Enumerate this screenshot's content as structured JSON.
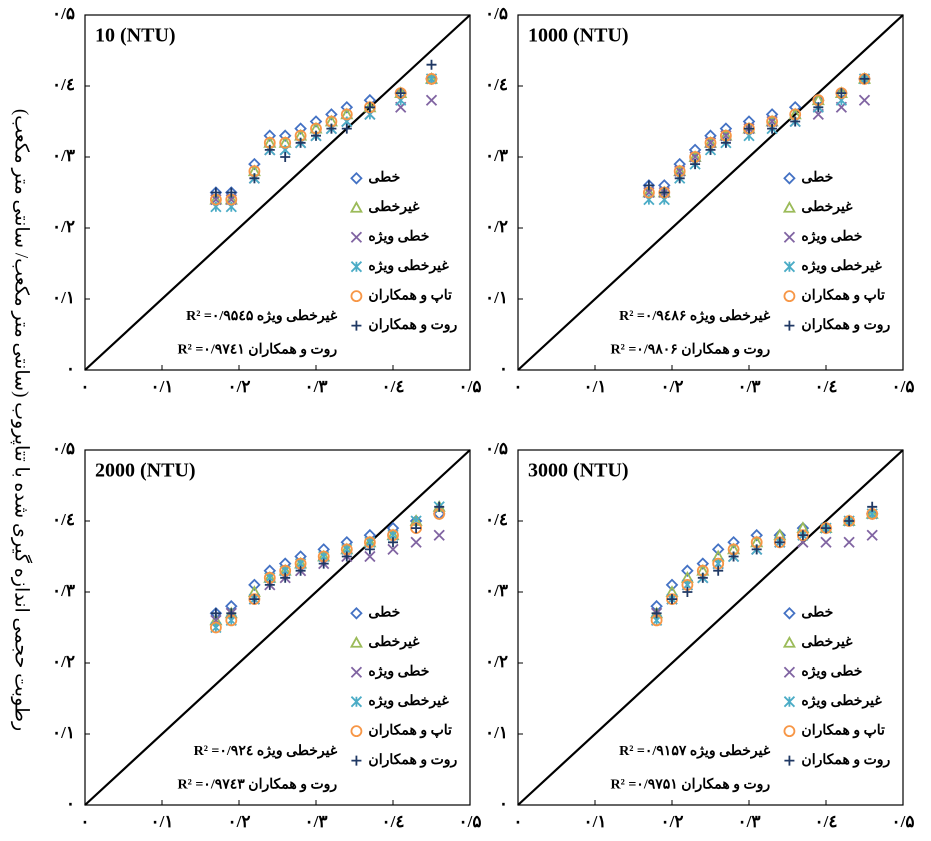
{
  "ylabel": "رطوبت حجمی اندازه گیری شده با تتاپروب (سانتی متر مکعب/ سانتی متر مکعب)",
  "chart_data": [
    {
      "type": "scatter",
      "title": "10 (NTU)",
      "xlim": [
        0,
        0.5
      ],
      "ylim": [
        0,
        0.5
      ],
      "xticks": [
        {
          "value": 0,
          "label": "۰"
        },
        {
          "value": 0.1,
          "label": "۰/۱"
        },
        {
          "value": 0.2,
          "label": "۰/۲"
        },
        {
          "value": 0.3,
          "label": "۰/۳"
        },
        {
          "value": 0.4,
          "label": "۰/٤"
        },
        {
          "value": 0.5,
          "label": "۰/۵"
        }
      ],
      "yticks": [
        {
          "value": 0,
          "label": "۰"
        },
        {
          "value": 0.1,
          "label": "۰/۱"
        },
        {
          "value": 0.2,
          "label": "۰/۲"
        },
        {
          "value": 0.3,
          "label": "۰/۳"
        },
        {
          "value": 0.4,
          "label": "۰/٤"
        },
        {
          "value": 0.5,
          "label": "۰/۵"
        }
      ],
      "annotations": [
        "غیرخطی ویژه R² =۰/۹۵٤۵",
        "روت و همکاران R² =۰/۹۷٤۱"
      ],
      "x": [
        0.17,
        0.19,
        0.22,
        0.24,
        0.26,
        0.28,
        0.3,
        0.32,
        0.34,
        0.37,
        0.41,
        0.45
      ],
      "series": [
        {
          "name": "خطی",
          "color": "#4472c4",
          "marker": "diamond",
          "values": [
            0.25,
            0.25,
            0.29,
            0.33,
            0.33,
            0.34,
            0.35,
            0.36,
            0.37,
            0.38,
            0.39,
            0.41
          ]
        },
        {
          "name": "غیرخطی",
          "color": "#9bbb59",
          "marker": "triangle",
          "values": [
            0.24,
            0.24,
            0.28,
            0.32,
            0.32,
            0.33,
            0.34,
            0.35,
            0.36,
            0.37,
            0.39,
            0.41
          ]
        },
        {
          "name": "خطی ویژه",
          "color": "#8064a2",
          "marker": "x",
          "values": [
            0.24,
            0.24,
            0.27,
            0.31,
            0.31,
            0.32,
            0.33,
            0.34,
            0.35,
            0.36,
            0.37,
            0.38
          ]
        },
        {
          "name": "غیرخطی ویژه",
          "color": "#4bacc6",
          "marker": "asterisk",
          "values": [
            0.23,
            0.23,
            0.27,
            0.31,
            0.31,
            0.32,
            0.33,
            0.34,
            0.35,
            0.36,
            0.38,
            0.41
          ]
        },
        {
          "name": "تاپ و همکاران",
          "color": "#f79646",
          "marker": "circle",
          "values": [
            0.24,
            0.24,
            0.28,
            0.32,
            0.32,
            0.33,
            0.34,
            0.35,
            0.36,
            0.37,
            0.39,
            0.41
          ]
        },
        {
          "name": "روت و همکاران",
          "color": "#1f3864",
          "marker": "plus",
          "values": [
            0.25,
            0.25,
            0.27,
            0.31,
            0.3,
            0.32,
            0.33,
            0.34,
            0.34,
            0.37,
            0.39,
            0.43
          ]
        }
      ]
    },
    {
      "type": "scatter",
      "title": "1000 (NTU)",
      "xlim": [
        0,
        0.5
      ],
      "ylim": [
        0,
        0.5
      ],
      "xticks": [
        {
          "value": 0,
          "label": "۰"
        },
        {
          "value": 0.1,
          "label": "۰/۱"
        },
        {
          "value": 0.2,
          "label": "۰/۲"
        },
        {
          "value": 0.3,
          "label": "۰/۳"
        },
        {
          "value": 0.4,
          "label": "۰/٤"
        },
        {
          "value": 0.5,
          "label": "۰/۵"
        }
      ],
      "yticks": [
        {
          "value": 0,
          "label": "۰"
        },
        {
          "value": 0.1,
          "label": "۰/۱"
        },
        {
          "value": 0.2,
          "label": "۰/۲"
        },
        {
          "value": 0.3,
          "label": "۰/۳"
        },
        {
          "value": 0.4,
          "label": "۰/٤"
        },
        {
          "value": 0.5,
          "label": "۰/۵"
        }
      ],
      "annotations": [
        "غیرخطی ویژه R² =۰/۹٤۸۶",
        "روت و همکاران R² =۰/۹۸۰۶"
      ],
      "x": [
        0.17,
        0.19,
        0.21,
        0.23,
        0.25,
        0.27,
        0.3,
        0.33,
        0.36,
        0.39,
        0.42,
        0.45
      ],
      "series": [
        {
          "name": "خطی",
          "color": "#4472c4",
          "marker": "diamond",
          "values": [
            0.26,
            0.26,
            0.29,
            0.31,
            0.33,
            0.34,
            0.35,
            0.36,
            0.37,
            0.38,
            0.39,
            0.41
          ]
        },
        {
          "name": "غیرخطی",
          "color": "#9bbb59",
          "marker": "triangle",
          "values": [
            0.25,
            0.25,
            0.28,
            0.3,
            0.32,
            0.33,
            0.34,
            0.35,
            0.36,
            0.38,
            0.39,
            0.41
          ]
        },
        {
          "name": "خطی ویژه",
          "color": "#8064a2",
          "marker": "x",
          "values": [
            0.25,
            0.25,
            0.28,
            0.3,
            0.32,
            0.33,
            0.34,
            0.35,
            0.35,
            0.36,
            0.37,
            0.38
          ]
        },
        {
          "name": "غیرخطی ویژه",
          "color": "#4bacc6",
          "marker": "asterisk",
          "values": [
            0.24,
            0.24,
            0.27,
            0.29,
            0.31,
            0.32,
            0.33,
            0.34,
            0.35,
            0.37,
            0.38,
            0.41
          ]
        },
        {
          "name": "تاپ و همکاران",
          "color": "#f79646",
          "marker": "circle",
          "values": [
            0.25,
            0.25,
            0.28,
            0.3,
            0.32,
            0.33,
            0.34,
            0.35,
            0.36,
            0.38,
            0.39,
            0.41
          ]
        },
        {
          "name": "روت و همکاران",
          "color": "#1f3864",
          "marker": "plus",
          "values": [
            0.26,
            0.25,
            0.27,
            0.29,
            0.31,
            0.32,
            0.34,
            0.34,
            0.35,
            0.37,
            0.39,
            0.41
          ]
        }
      ]
    },
    {
      "type": "scatter",
      "title": "2000 (NTU)",
      "xlim": [
        0,
        0.5
      ],
      "ylim": [
        0,
        0.5
      ],
      "xticks": [
        {
          "value": 0,
          "label": "۰"
        },
        {
          "value": 0.1,
          "label": "۰/۱"
        },
        {
          "value": 0.2,
          "label": "۰/۲"
        },
        {
          "value": 0.3,
          "label": "۰/۳"
        },
        {
          "value": 0.4,
          "label": "۰/٤"
        },
        {
          "value": 0.5,
          "label": "۰/۵"
        }
      ],
      "yticks": [
        {
          "value": 0,
          "label": "۰"
        },
        {
          "value": 0.1,
          "label": "۰/۱"
        },
        {
          "value": 0.2,
          "label": "۰/۲"
        },
        {
          "value": 0.3,
          "label": "۰/۳"
        },
        {
          "value": 0.4,
          "label": "۰/٤"
        },
        {
          "value": 0.5,
          "label": "۰/۵"
        }
      ],
      "annotations": [
        "غیرخطی ویژه R² =۰/۹۲٤",
        "روت و همکاران R² =۰/۹۷٤۳"
      ],
      "x": [
        0.17,
        0.19,
        0.22,
        0.24,
        0.26,
        0.28,
        0.31,
        0.34,
        0.37,
        0.4,
        0.43,
        0.46
      ],
      "series": [
        {
          "name": "خطی",
          "color": "#4472c4",
          "marker": "diamond",
          "values": [
            0.27,
            0.28,
            0.31,
            0.33,
            0.34,
            0.35,
            0.36,
            0.37,
            0.38,
            0.39,
            0.4,
            0.41
          ]
        },
        {
          "name": "غیرخطی",
          "color": "#9bbb59",
          "marker": "triangle",
          "values": [
            0.26,
            0.27,
            0.3,
            0.32,
            0.33,
            0.34,
            0.35,
            0.36,
            0.37,
            0.38,
            0.4,
            0.42
          ]
        },
        {
          "name": "خطی ویژه",
          "color": "#8064a2",
          "marker": "x",
          "values": [
            0.26,
            0.27,
            0.29,
            0.31,
            0.32,
            0.33,
            0.34,
            0.35,
            0.35,
            0.36,
            0.37,
            0.38
          ]
        },
        {
          "name": "غیرخطی ویژه",
          "color": "#4bacc6",
          "marker": "asterisk",
          "values": [
            0.25,
            0.26,
            0.29,
            0.32,
            0.33,
            0.34,
            0.35,
            0.36,
            0.37,
            0.38,
            0.4,
            0.42
          ]
        },
        {
          "name": "تاپ و همکاران",
          "color": "#f79646",
          "marker": "circle",
          "values": [
            0.25,
            0.26,
            0.29,
            0.32,
            0.33,
            0.34,
            0.35,
            0.36,
            0.37,
            0.38,
            0.39,
            0.41
          ]
        },
        {
          "name": "روت و همکاران",
          "color": "#1f3864",
          "marker": "plus",
          "values": [
            0.27,
            0.27,
            0.29,
            0.31,
            0.32,
            0.33,
            0.34,
            0.35,
            0.36,
            0.37,
            0.39,
            0.42
          ]
        }
      ]
    },
    {
      "type": "scatter",
      "title": "3000 (NTU)",
      "xlim": [
        0,
        0.5
      ],
      "ylim": [
        0,
        0.5
      ],
      "xticks": [
        {
          "value": 0,
          "label": "۰"
        },
        {
          "value": 0.1,
          "label": "۰/۱"
        },
        {
          "value": 0.2,
          "label": "۰/۲"
        },
        {
          "value": 0.3,
          "label": "۰/۳"
        },
        {
          "value": 0.4,
          "label": "۰/٤"
        },
        {
          "value": 0.5,
          "label": "۰/۵"
        }
      ],
      "yticks": [
        {
          "value": 0,
          "label": "۰"
        },
        {
          "value": 0.1,
          "label": "۰/۱"
        },
        {
          "value": 0.2,
          "label": "۰/۲"
        },
        {
          "value": 0.3,
          "label": "۰/۳"
        },
        {
          "value": 0.4,
          "label": "۰/٤"
        },
        {
          "value": 0.5,
          "label": "۰/۵"
        }
      ],
      "annotations": [
        "غیرخطی ویژه R² =۰/۹۱۵۷",
        "روت و همکاران R² =۰/۹۷۵۱"
      ],
      "x": [
        0.18,
        0.2,
        0.22,
        0.24,
        0.26,
        0.28,
        0.31,
        0.34,
        0.37,
        0.4,
        0.43,
        0.46
      ],
      "series": [
        {
          "name": "خطی",
          "color": "#4472c4",
          "marker": "diamond",
          "values": [
            0.28,
            0.31,
            0.33,
            0.34,
            0.36,
            0.37,
            0.38,
            0.38,
            0.39,
            0.39,
            0.4,
            0.41
          ]
        },
        {
          "name": "غیرخطی",
          "color": "#9bbb59",
          "marker": "triangle",
          "values": [
            0.27,
            0.3,
            0.32,
            0.33,
            0.35,
            0.36,
            0.37,
            0.38,
            0.39,
            0.39,
            0.4,
            0.41
          ]
        },
        {
          "name": "خطی ویژه",
          "color": "#8064a2",
          "marker": "x",
          "values": [
            0.27,
            0.29,
            0.31,
            0.32,
            0.34,
            0.35,
            0.36,
            0.37,
            0.37,
            0.37,
            0.37,
            0.38
          ]
        },
        {
          "name": "غیرخطی ویژه",
          "color": "#4bacc6",
          "marker": "asterisk",
          "values": [
            0.26,
            0.29,
            0.31,
            0.32,
            0.34,
            0.35,
            0.36,
            0.37,
            0.38,
            0.39,
            0.4,
            0.41
          ]
        },
        {
          "name": "تاپ و همکاران",
          "color": "#f79646",
          "marker": "circle",
          "values": [
            0.26,
            0.29,
            0.31,
            0.33,
            0.34,
            0.36,
            0.37,
            0.37,
            0.38,
            0.39,
            0.4,
            0.41
          ]
        },
        {
          "name": "روت و همکاران",
          "color": "#1f3864",
          "marker": "plus",
          "values": [
            0.27,
            0.29,
            0.3,
            0.32,
            0.33,
            0.35,
            0.36,
            0.37,
            0.38,
            0.39,
            0.4,
            0.42
          ]
        }
      ]
    }
  ]
}
